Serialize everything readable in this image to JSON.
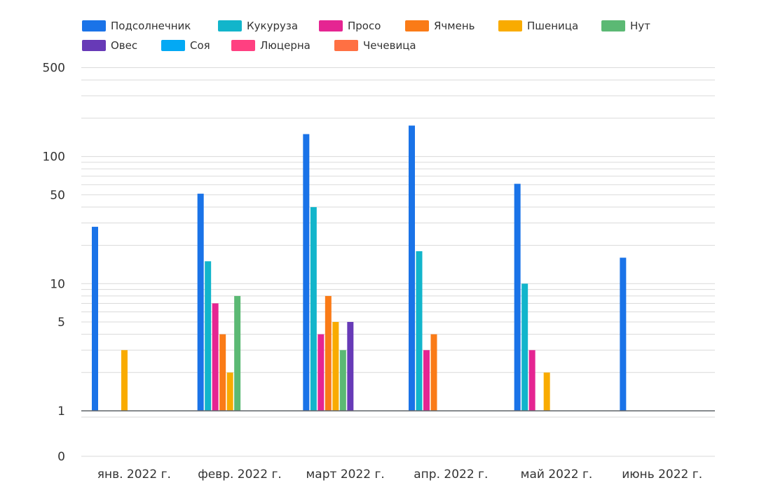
{
  "chart_data": {
    "type": "bar",
    "yscale": "log",
    "ylim": [
      0,
      500
    ],
    "yticks": [
      {
        "value": 500,
        "label": "500"
      },
      {
        "value": 100,
        "label": "100"
      },
      {
        "value": 50,
        "label": "50"
      },
      {
        "value": 10,
        "label": "10"
      },
      {
        "value": 5,
        "label": "5"
      },
      {
        "value": 1,
        "label": "1"
      },
      {
        "value": 0,
        "label": "0"
      }
    ],
    "grid": true,
    "legend_position": "top-left",
    "categories": [
      "янв. 2022 г.",
      "февр. 2022 г.",
      "март 2022 г.",
      "апр. 2022 г.",
      "май 2022 г.",
      "июнь 2022 г."
    ],
    "series": [
      {
        "name": "Подсолнечник",
        "color": "#1a73e8",
        "values": [
          28,
          51,
          150,
          175,
          61,
          16
        ]
      },
      {
        "name": "Кукуруза",
        "color": "#12b5cb",
        "values": [
          null,
          15,
          40,
          18,
          10,
          null
        ]
      },
      {
        "name": "Просо",
        "color": "#e52592",
        "values": [
          null,
          7,
          4,
          3,
          3,
          null
        ]
      },
      {
        "name": "Ячмень",
        "color": "#fa7b17",
        "values": [
          null,
          4,
          8,
          4,
          null,
          null
        ]
      },
      {
        "name": "Пшеница",
        "color": "#f9ab00",
        "values": [
          3,
          2,
          5,
          null,
          2,
          null
        ]
      },
      {
        "name": "Нут",
        "color": "#5bb974",
        "values": [
          null,
          8,
          3,
          null,
          null,
          null
        ]
      },
      {
        "name": "Овес",
        "color": "#673ab7",
        "values": [
          null,
          null,
          5,
          null,
          null,
          null
        ]
      },
      {
        "name": "Соя",
        "color": "#03a9f4",
        "values": [
          null,
          null,
          null,
          null,
          null,
          null
        ]
      },
      {
        "name": "Люцерна",
        "color": "#ff4081",
        "values": [
          null,
          null,
          null,
          null,
          null,
          null
        ]
      },
      {
        "name": "Чечевица",
        "color": "#ff7043",
        "values": [
          null,
          null,
          null,
          null,
          null,
          null
        ]
      }
    ]
  }
}
